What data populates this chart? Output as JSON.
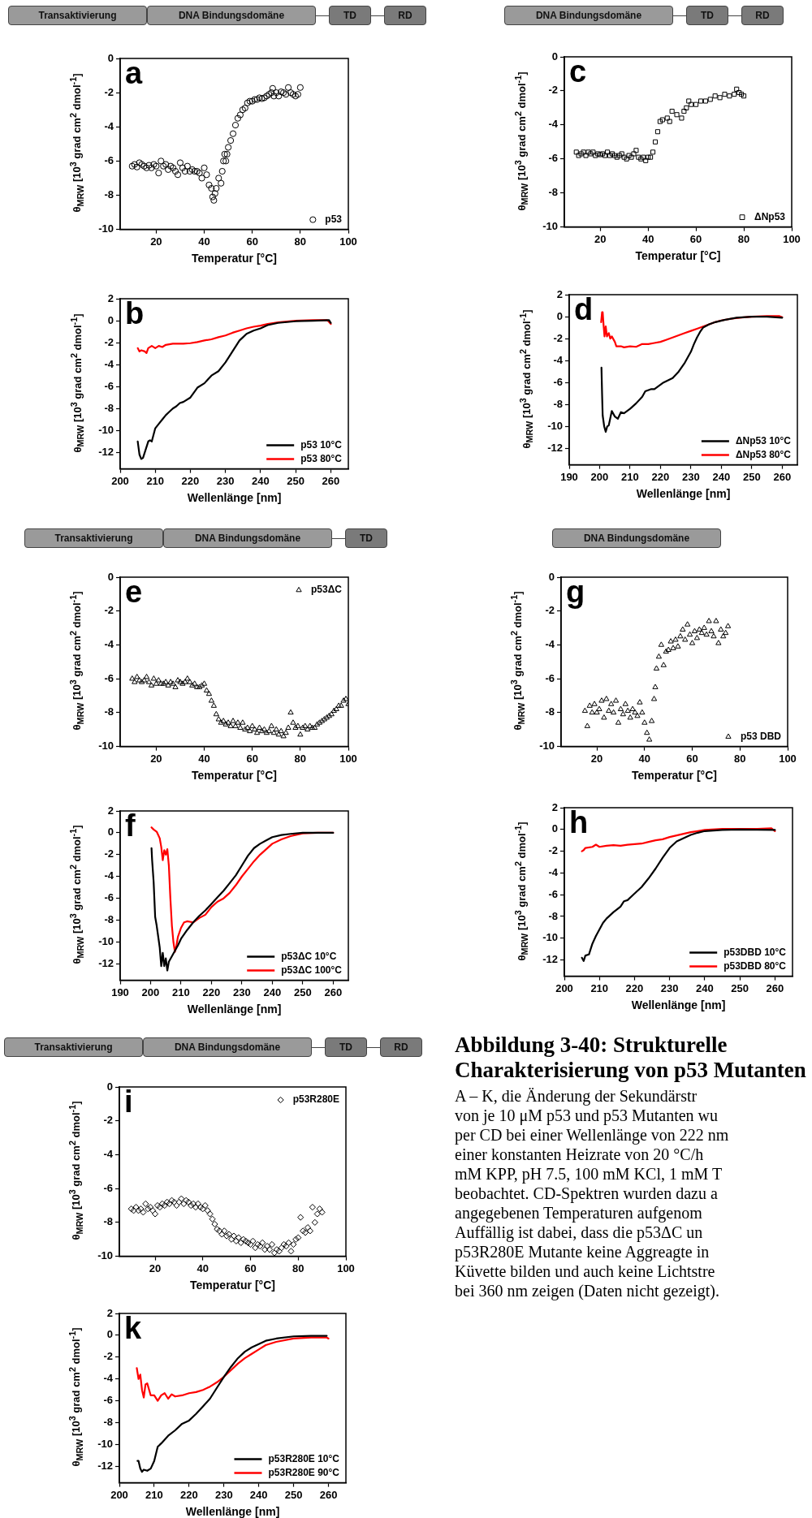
{
  "chart_data": [
    {
      "type": "scatter",
      "title": "a",
      "xlabel": "Temperatur [°C]",
      "ylabel": "θ$_{MRW}$ [10$^{3}$ grad cm$^{2}$ dmol$^{-1}$]",
      "annotations": [
        "Transaktivierung",
        "DNA Bindungsdomäne",
        "TD",
        "RD"
      ],
      "marker": "circle",
      "legend": "bottom right",
      "xlim": [
        5,
        100
      ],
      "xticks": [
        20,
        40,
        60,
        80,
        100
      ],
      "ylim": [
        -10,
        0
      ],
      "yticks": [
        0,
        -2,
        -4,
        -6,
        -8,
        -10
      ],
      "x": [
        10,
        11,
        12,
        13,
        14,
        15,
        16,
        17,
        18,
        19,
        20,
        21,
        22,
        23,
        24,
        25,
        26,
        27,
        28,
        29,
        30,
        31,
        32,
        33,
        34,
        35,
        36,
        37,
        38,
        39,
        40,
        41,
        42,
        43,
        43.5,
        44,
        44.5,
        45,
        46,
        47,
        47.5,
        48,
        48.5,
        49,
        49.5,
        50,
        51,
        52,
        53,
        54,
        55,
        56,
        57,
        58,
        59,
        60,
        61,
        62,
        63,
        64,
        65,
        66,
        67,
        68,
        68.5,
        69,
        70,
        71,
        72,
        73,
        74,
        75,
        76,
        77,
        78,
        79,
        80
      ],
      "series": [
        {
          "name": "p53",
          "color": "#000000",
          "values": [
            -6.3,
            -6.2,
            -6.35,
            -6.1,
            -6.2,
            -6.3,
            -6.4,
            -6.25,
            -6.4,
            -6.2,
            -6.3,
            -6.7,
            -6.0,
            -6.3,
            -6.2,
            -6.5,
            -6.3,
            -6.4,
            -6.6,
            -6.8,
            -6.1,
            -6.4,
            -6.6,
            -6.3,
            -6.6,
            -6.5,
            -6.6,
            -6.6,
            -6.7,
            -7.0,
            -6.4,
            -6.8,
            -7.4,
            -7.6,
            -8.1,
            -8.3,
            -7.9,
            -7.6,
            -7.0,
            -7.3,
            -6.6,
            -6.0,
            -5.6,
            -6.0,
            -5.6,
            -5.2,
            -4.8,
            -4.4,
            -3.9,
            -3.5,
            -3.3,
            -3.0,
            -2.9,
            -2.6,
            -2.5,
            -2.5,
            -2.4,
            -2.4,
            -2.3,
            -2.35,
            -2.3,
            -2.2,
            -2.1,
            -2.0,
            -1.75,
            -2.2,
            -2.0,
            -2.2,
            -1.95,
            -2.0,
            -2.1,
            -1.7,
            -2.0,
            -2.1,
            -2.2,
            -2.1,
            -1.7
          ]
        }
      ]
    },
    {
      "type": "line",
      "title": "b",
      "xlabel": "Wellenlänge [nm]",
      "ylabel": "θ$_{MRW}$ [10$^{3}$ grad cm$^{2}$ dmol$^{-1}$]",
      "legend": "bottom right",
      "xlim": [
        200,
        265
      ],
      "xticks": [
        200,
        210,
        220,
        230,
        240,
        250,
        260
      ],
      "ylim": [
        -13.5,
        2
      ],
      "yticks": [
        2,
        0,
        -2,
        -4,
        -6,
        -8,
        -10,
        -12
      ],
      "series": [
        {
          "name": "p53 10°C",
          "color": "#000000",
          "x": [
            205,
            205.5,
            206,
            206.5,
            207,
            208,
            208.5,
            209,
            210,
            211,
            212,
            213,
            214,
            215,
            216,
            217,
            218,
            220,
            222,
            224,
            226,
            228,
            230,
            232,
            234,
            235,
            236,
            238,
            240,
            242,
            245,
            250,
            255,
            259.5,
            260
          ],
          "values": [
            -11.0,
            -12.2,
            -12.6,
            -12.5,
            -12.0,
            -11.0,
            -10.9,
            -11.0,
            -9.8,
            -9.4,
            -9.0,
            -8.6,
            -8.3,
            -8.0,
            -7.8,
            -7.5,
            -7.4,
            -7.0,
            -6.1,
            -5.7,
            -5.0,
            -4.6,
            -3.8,
            -2.8,
            -1.8,
            -1.5,
            -1.2,
            -0.9,
            -0.7,
            -0.4,
            -0.2,
            -0.05,
            0,
            0.05,
            -0.2
          ]
        },
        {
          "name": "p53 80°C",
          "color": "#ff0000",
          "x": [
            205,
            205.5,
            206,
            207,
            207.5,
            208,
            209,
            210,
            211,
            212,
            213,
            215,
            218,
            220,
            222,
            224,
            226,
            228,
            230,
            232,
            234,
            236,
            238,
            240,
            242,
            245,
            250,
            255,
            259,
            260
          ],
          "values": [
            -2.5,
            -2.8,
            -2.7,
            -2.8,
            -2.95,
            -2.5,
            -2.3,
            -2.5,
            -2.3,
            -2.4,
            -2.2,
            -2.1,
            -2.1,
            -2.05,
            -1.95,
            -1.8,
            -1.7,
            -1.5,
            -1.35,
            -1.1,
            -0.9,
            -0.7,
            -0.55,
            -0.45,
            -0.3,
            -0.15,
            0,
            0.05,
            0.05,
            -0.3
          ]
        }
      ]
    },
    {
      "type": "scatter",
      "title": "c",
      "xlabel": "Temperatur [°C]",
      "ylabel": "θ$_{MRW}$ [10$^{3}$ grad cm$^{2}$ dmol$^{-1}$]",
      "annotations": [
        "DNA Bindungsdomäne",
        "TD",
        "RD"
      ],
      "marker": "square",
      "legend": "bottom right",
      "xlim": [
        5,
        100
      ],
      "xticks": [
        20,
        40,
        60,
        80,
        100
      ],
      "ylim": [
        -10,
        0
      ],
      "yticks": [
        0,
        -2,
        -4,
        -6,
        -8,
        -10
      ],
      "x": [
        10,
        11,
        12,
        13,
        14,
        15,
        16,
        17,
        18,
        19,
        20,
        21,
        22,
        23,
        24,
        25,
        26,
        27,
        28,
        29,
        30,
        31,
        32,
        33,
        34,
        35,
        36,
        37,
        38,
        39,
        40,
        41,
        42,
        43,
        44,
        45,
        46,
        48,
        49,
        50,
        52,
        54,
        55,
        56,
        57,
        58,
        60,
        62,
        64,
        66,
        68,
        70,
        72,
        74,
        76,
        77,
        78,
        79,
        80
      ],
      "series": [
        {
          "name": "ΔNp53",
          "color": "#000000",
          "values": [
            -5.6,
            -5.8,
            -5.7,
            -5.6,
            -5.8,
            -5.6,
            -5.7,
            -5.6,
            -5.8,
            -5.7,
            -5.75,
            -5.7,
            -5.8,
            -5.6,
            -5.8,
            -5.7,
            -5.8,
            -5.9,
            -5.8,
            -5.7,
            -5.9,
            -6.0,
            -5.8,
            -5.9,
            -5.7,
            -5.5,
            -5.9,
            -6.0,
            -5.9,
            -6.1,
            -5.9,
            -5.9,
            -5.6,
            -5.0,
            -4.4,
            -3.8,
            -3.7,
            -3.6,
            -3.8,
            -3.2,
            -3.4,
            -3.6,
            -3.2,
            -3.0,
            -2.6,
            -2.8,
            -2.8,
            -2.6,
            -2.6,
            -2.5,
            -2.3,
            -2.4,
            -2.2,
            -2.3,
            -2.2,
            -1.9,
            -2.1,
            -2.2,
            -2.3
          ]
        }
      ]
    },
    {
      "type": "line",
      "title": "d",
      "xlabel": "Wellenlänge [nm]",
      "ylabel": "θ$_{MRW}$ [10$^{3}$ grad cm$^{2}$ dmol$^{-1}$]",
      "legend": "bottom right",
      "xlim": [
        190,
        265
      ],
      "xticks": [
        190,
        200,
        210,
        220,
        230,
        240,
        250,
        260
      ],
      "ylim": [
        -13.5,
        2
      ],
      "yticks": [
        2,
        0,
        -2,
        -4,
        -6,
        -8,
        -10,
        -12
      ],
      "series": [
        {
          "name": "ΔNp53 10°C",
          "color": "#000000",
          "x": [
            200.6,
            200.8,
            201,
            201.5,
            202,
            202.5,
            203,
            204,
            205,
            206,
            207,
            208,
            210,
            212,
            214,
            215,
            217,
            218,
            221,
            224,
            226,
            228,
            230,
            231,
            232,
            233,
            234,
            236,
            238,
            241,
            245,
            250,
            255,
            260
          ],
          "values": [
            -4.65,
            -7.0,
            -9.0,
            -10.0,
            -10.5,
            -10.0,
            -9.9,
            -8.6,
            -9.1,
            -9.3,
            -8.7,
            -8.8,
            -8.4,
            -7.9,
            -7.3,
            -6.8,
            -6.6,
            -6.6,
            -6.0,
            -5.6,
            -5.0,
            -4.2,
            -3.2,
            -2.5,
            -1.9,
            -1.4,
            -1.0,
            -0.7,
            -0.5,
            -0.3,
            -0.1,
            0,
            0,
            -0.1
          ]
        },
        {
          "name": "ΔNp53 80°C",
          "color": "#ff0000",
          "x": [
            200.5,
            200.8,
            201,
            201.3,
            201.6,
            202,
            202.4,
            203,
            203.5,
            204,
            205,
            205.5,
            207,
            208,
            210,
            212,
            214,
            216,
            218,
            220,
            222,
            224,
            226,
            228,
            230,
            232,
            234,
            236,
            238,
            240,
            243,
            246,
            250,
            255,
            259,
            260
          ],
          "values": [
            -0.5,
            0.4,
            0.4,
            -0.8,
            -1.8,
            -0.9,
            -1.8,
            -1.5,
            -2.0,
            -1.8,
            -2.3,
            -2.7,
            -2.7,
            -2.8,
            -2.7,
            -2.75,
            -2.5,
            -2.5,
            -2.4,
            -2.3,
            -2.1,
            -1.9,
            -1.7,
            -1.5,
            -1.3,
            -1.1,
            -0.9,
            -0.7,
            -0.5,
            -0.35,
            -0.2,
            -0.1,
            0,
            0.05,
            0.05,
            -0.05
          ]
        }
      ]
    },
    {
      "type": "scatter",
      "title": "e",
      "xlabel": "Temperatur [°C]",
      "ylabel": "θ$_{MRW}$ [10$^{3}$ grad cm$^{2}$ dmol$^{-1}$]",
      "annotations": [
        "Transaktivierung",
        "DNA Bindungsdomäne",
        "TD"
      ],
      "marker": "triangle",
      "legend": "top right",
      "xlim": [
        5,
        100
      ],
      "xticks": [
        20,
        40,
        60,
        80,
        100
      ],
      "ylim": [
        -10,
        0
      ],
      "yticks": [
        0,
        -2,
        -4,
        -6,
        -8,
        -10
      ],
      "x": [
        10,
        11,
        12,
        13,
        14,
        15,
        16,
        17,
        18,
        19,
        20,
        21,
        22,
        23,
        24,
        25,
        26,
        27,
        28,
        29,
        30,
        31,
        32,
        33,
        34,
        35,
        36,
        37,
        38,
        39,
        40,
        41,
        42,
        43,
        44,
        45,
        46,
        47,
        48,
        49,
        50,
        51,
        52,
        53,
        54,
        55,
        56,
        57,
        58,
        59,
        60,
        61,
        62,
        63,
        64,
        65,
        66,
        67,
        68,
        69,
        70,
        71,
        72,
        73,
        74,
        75,
        76,
        77,
        78,
        79,
        80,
        81,
        82,
        83,
        84,
        85,
        86,
        87,
        88,
        89,
        90,
        91,
        92,
        93,
        94,
        95,
        96,
        97,
        98,
        99,
        100
      ],
      "series": [
        {
          "name": "p53ΔC",
          "color": "#000000",
          "values": [
            -6.0,
            -6.2,
            -5.9,
            -6.1,
            -6.2,
            -6.1,
            -5.9,
            -6.2,
            -6.4,
            -6.0,
            -6.3,
            -6.1,
            -6.3,
            -6.3,
            -6.2,
            -6.4,
            -6.2,
            -6.3,
            -6.5,
            -6.1,
            -6.2,
            -6.3,
            -6.2,
            -6.0,
            -6.2,
            -6.4,
            -6.3,
            -6.5,
            -6.5,
            -6.4,
            -6.3,
            -6.7,
            -6.9,
            -7.3,
            -7.6,
            -8.1,
            -8.4,
            -8.6,
            -8.5,
            -8.7,
            -8.6,
            -8.8,
            -8.5,
            -8.8,
            -8.6,
            -8.9,
            -8.6,
            -9.0,
            -8.9,
            -9.1,
            -8.8,
            -9.0,
            -9.2,
            -8.9,
            -9.1,
            -9.0,
            -9.2,
            -9.1,
            -8.8,
            -9.2,
            -9.0,
            -9.3,
            -9.1,
            -9.4,
            -9.2,
            -8.9,
            -8.0,
            -8.6,
            -8.9,
            -8.8,
            -9.3,
            -8.9,
            -8.8,
            -9.0,
            -8.8,
            -8.9,
            -8.9,
            -8.7,
            -8.6,
            -8.5,
            -8.4,
            -8.3,
            -8.2,
            -8.1,
            -7.9,
            -7.8,
            -7.6,
            -7.6,
            -7.3,
            -7.2,
            -7.5
          ]
        }
      ]
    },
    {
      "type": "line",
      "title": "f",
      "xlabel": "Wellenlänge [nm]",
      "ylabel": "θ$_{MRW}$ [10$^{3}$ grad cm$^{2}$ dmol$^{-1}$]",
      "legend": "bottom right",
      "xlim": [
        190,
        265
      ],
      "xticks": [
        190,
        200,
        210,
        220,
        230,
        240,
        250,
        260
      ],
      "ylim": [
        -13.5,
        2
      ],
      "yticks": [
        2,
        0,
        -2,
        -4,
        -6,
        -8,
        -10,
        -12
      ],
      "series": [
        {
          "name": "p53ΔC 10°C",
          "color": "#000000",
          "x": [
            200.3,
            200.5,
            201,
            201.5,
            202,
            202.5,
            203,
            203.5,
            204,
            204.5,
            205,
            205.5,
            206,
            207,
            208,
            209,
            210,
            212,
            214,
            216,
            218,
            220,
            222,
            224,
            226,
            228,
            230,
            232,
            234,
            236,
            238,
            240,
            243,
            246,
            250,
            260
          ],
          "values": [
            -1.4,
            -2.5,
            -4.5,
            -7.7,
            -8.5,
            -9.5,
            -10.5,
            -12.2,
            -11.0,
            -12.2,
            -11.5,
            -12.6,
            -11.8,
            -11.3,
            -10.8,
            -10.3,
            -9.7,
            -8.9,
            -8.2,
            -7.6,
            -7.1,
            -6.5,
            -5.9,
            -5.3,
            -4.6,
            -3.9,
            -3.0,
            -2.1,
            -1.4,
            -1.0,
            -0.7,
            -0.4,
            -0.2,
            -0.1,
            0,
            0
          ]
        },
        {
          "name": "p53ΔC 100°C",
          "color": "#ff0000",
          "x": [
            200.3,
            201,
            202,
            203,
            203.5,
            204,
            204.5,
            205,
            205.5,
            206,
            206.5,
            207,
            207.5,
            208,
            208.5,
            209,
            210,
            211,
            212,
            214,
            216,
            218,
            220,
            222,
            224,
            226,
            228,
            230,
            232,
            234,
            236,
            238,
            240,
            243,
            246,
            250,
            255,
            260
          ],
          "values": [
            0.5,
            0.3,
            0.1,
            -0.5,
            -1.3,
            -2.5,
            -1.6,
            -2.0,
            -1.5,
            -3.0,
            -6.0,
            -8.5,
            -10.0,
            -10.9,
            -10.3,
            -9.5,
            -8.7,
            -8.2,
            -8.1,
            -8.2,
            -7.8,
            -7.5,
            -6.8,
            -6.3,
            -6.0,
            -5.5,
            -4.8,
            -4.0,
            -3.3,
            -2.6,
            -2.0,
            -1.5,
            -1.0,
            -0.6,
            -0.3,
            -0.05,
            0,
            0
          ]
        }
      ]
    },
    {
      "type": "scatter",
      "title": "g",
      "xlabel": "Temperatur [°C]",
      "ylabel": "θ$_{MRW}$ [10$^{3}$ grad cm$^{2}$ dmol$^{-1}$]",
      "annotations": [
        "DNA Bindungsdomäne"
      ],
      "marker": "triangle",
      "legend": "bottom right",
      "xlim": [
        5,
        100
      ],
      "xticks": [
        20,
        40,
        60,
        80,
        100
      ],
      "ylim": [
        -10,
        0
      ],
      "yticks": [
        0,
        -2,
        -4,
        -6,
        -8,
        -10
      ],
      "x": [
        15,
        16,
        17,
        18,
        19,
        20,
        21,
        22,
        23,
        24,
        25,
        26,
        27,
        28,
        29,
        30,
        31,
        32,
        33,
        34,
        35,
        36,
        37,
        38,
        39,
        40,
        41,
        42,
        43,
        44,
        44.5,
        45,
        46,
        47,
        48,
        49,
        50,
        51,
        52,
        53,
        54,
        55,
        56,
        57,
        58,
        59,
        60,
        61,
        62,
        63,
        64,
        65,
        66,
        67,
        68,
        69,
        70,
        71,
        72,
        73,
        74,
        75
      ],
      "series": [
        {
          "name": "p53 DBD",
          "color": "#000000",
          "values": [
            -7.9,
            -8.8,
            -7.6,
            -8.0,
            -7.5,
            -8.0,
            -7.8,
            -7.3,
            -8.3,
            -7.2,
            -7.9,
            -7.5,
            -8.0,
            -7.3,
            -8.6,
            -7.8,
            -8.1,
            -7.5,
            -7.9,
            -8.3,
            -7.8,
            -8.0,
            -8.2,
            -7.4,
            -8.0,
            -8.6,
            -9.2,
            -9.6,
            -8.5,
            -7.2,
            -6.5,
            -5.4,
            -4.7,
            -4.0,
            -5.2,
            -4.4,
            -4.3,
            -3.8,
            -4.2,
            -3.7,
            -4.1,
            -3.5,
            -3.1,
            -3.7,
            -2.8,
            -3.4,
            -3.9,
            -3.2,
            -3.6,
            -3.1,
            -3.3,
            -3.0,
            -3.4,
            -2.6,
            -3.2,
            -3.5,
            -2.6,
            -3.9,
            -3.1,
            -3.5,
            -3.3,
            -2.9
          ]
        }
      ]
    },
    {
      "type": "line",
      "title": "h",
      "xlabel": "Wellenlänge [nm]",
      "ylabel": "θ$_{MRW}$ [10$^{3}$ grad cm$^{2}$ dmol$^{-1}$]",
      "legend": "bottom right",
      "xlim": [
        200,
        265
      ],
      "xticks": [
        200,
        210,
        220,
        230,
        240,
        250,
        260
      ],
      "ylim": [
        -13.5,
        2
      ],
      "yticks": [
        2,
        0,
        -2,
        -4,
        -6,
        -8,
        -10,
        -12
      ],
      "series": [
        {
          "name": "p53DBD 10°C",
          "color": "#000000",
          "x": [
            205,
            205.5,
            206,
            207,
            208,
            209,
            210,
            211,
            212,
            214,
            216,
            217,
            218,
            220,
            222,
            224,
            226,
            228,
            230,
            232,
            234,
            236,
            238,
            240,
            245,
            250,
            260
          ],
          "values": [
            -11.8,
            -12.1,
            -11.6,
            -11.5,
            -10.5,
            -9.8,
            -9.2,
            -8.6,
            -8.2,
            -7.6,
            -7.1,
            -6.6,
            -6.5,
            -5.9,
            -5.3,
            -4.5,
            -3.6,
            -2.6,
            -1.7,
            -1.1,
            -0.8,
            -0.5,
            -0.3,
            -0.15,
            -0.05,
            0,
            -0.05
          ]
        },
        {
          "name": "p53DBD 80°C",
          "color": "#ff0000",
          "x": [
            205,
            205.5,
            206,
            208,
            209,
            210,
            212,
            214,
            216,
            218,
            220,
            222,
            224,
            226,
            228,
            230,
            232,
            234,
            236,
            238,
            240,
            245,
            250,
            255,
            259,
            260
          ],
          "values": [
            -2.0,
            -1.9,
            -1.7,
            -1.6,
            -1.4,
            -1.6,
            -1.5,
            -1.45,
            -1.5,
            -1.4,
            -1.35,
            -1.3,
            -1.15,
            -1.0,
            -0.9,
            -0.7,
            -0.55,
            -0.4,
            -0.25,
            -0.15,
            -0.05,
            0.05,
            0.05,
            0.05,
            0.1,
            -0.15
          ]
        }
      ]
    },
    {
      "type": "scatter",
      "title": "i",
      "xlabel": "Temperatur [°C]",
      "ylabel": "θ$_{MRW}$ [10$^{3}$ grad cm$^{2}$ dmol$^{-1}$]",
      "annotations": [
        "Transaktivierung",
        "DNA Bindungsdomäne",
        "TD",
        "RD"
      ],
      "marker": "diamond",
      "legend": "top right",
      "xlim": [
        5,
        100
      ],
      "xticks": [
        20,
        40,
        60,
        80,
        100
      ],
      "ylim": [
        -10,
        0
      ],
      "yticks": [
        0,
        -2,
        -4,
        -6,
        -8,
        -10
      ],
      "x": [
        10,
        11,
        12,
        13,
        14,
        15,
        16,
        17,
        18,
        19,
        20,
        21,
        22,
        23,
        24,
        25,
        26,
        27,
        28,
        29,
        30,
        31,
        32,
        33,
        34,
        35,
        36,
        37,
        38,
        39,
        40,
        41,
        42,
        43,
        44,
        45,
        46,
        47,
        48,
        49,
        50,
        51,
        52,
        53,
        54,
        55,
        56,
        57,
        58,
        59,
        60,
        61,
        62,
        63,
        64,
        65,
        66,
        67,
        68,
        69,
        70,
        71,
        72,
        73,
        74,
        75,
        76,
        77,
        78,
        79,
        80,
        81,
        82,
        83,
        84,
        85,
        86,
        87,
        88,
        89,
        90
      ],
      "series": [
        {
          "name": "p53R280E",
          "color": "#000000",
          "values": [
            -7.2,
            -7.3,
            -7.1,
            -7.3,
            -7.2,
            -7.4,
            -6.9,
            -7.2,
            -7.1,
            -7.3,
            -7.5,
            -7.0,
            -7.1,
            -6.9,
            -7.0,
            -6.8,
            -6.9,
            -6.7,
            -6.8,
            -7.0,
            -6.8,
            -6.6,
            -6.9,
            -6.7,
            -6.8,
            -7.0,
            -6.9,
            -7.1,
            -6.9,
            -7.1,
            -7.2,
            -7.0,
            -7.3,
            -7.5,
            -7.8,
            -8.1,
            -8.4,
            -8.5,
            -8.7,
            -8.5,
            -8.8,
            -8.7,
            -9.0,
            -8.8,
            -9.1,
            -8.9,
            -9.2,
            -9.0,
            -9.1,
            -9.2,
            -9.3,
            -9.1,
            -9.5,
            -9.3,
            -9.4,
            -9.2,
            -9.6,
            -9.4,
            -9.6,
            -9.3,
            -9.8,
            -9.6,
            -9.7,
            -9.5,
            -9.3,
            -9.4,
            -9.2,
            -9.7,
            -9.3,
            -9.0,
            -8.9,
            -7.7,
            -8.5,
            -8.6,
            -8.3,
            -8.5,
            -7.1,
            -8.0,
            -7.5,
            -7.2,
            -7.4
          ]
        }
      ]
    },
    {
      "type": "line",
      "title": "k",
      "xlabel": "Wellenlänge [nm]",
      "ylabel": "θ$_{MRW}$ [10$^{3}$ grad cm$^{2}$ dmol$^{-1}$]",
      "legend": "bottom right",
      "xlim": [
        200,
        265
      ],
      "xticks": [
        200,
        210,
        220,
        230,
        240,
        250,
        260
      ],
      "ylim": [
        -13.5,
        2
      ],
      "yticks": [
        2,
        0,
        -2,
        -4,
        -6,
        -8,
        -10,
        -12
      ],
      "series": [
        {
          "name": "p53R280E 10°C",
          "color": "#000000",
          "x": [
            205.2,
            205.5,
            206,
            206.5,
            207,
            208,
            209,
            210,
            211,
            212,
            214,
            216,
            218,
            220,
            222,
            224,
            226,
            228,
            230,
            232,
            234,
            236,
            238,
            240,
            242,
            245,
            250,
            255,
            259.5
          ],
          "values": [
            -11.5,
            -11.5,
            -12.2,
            -12.5,
            -12.3,
            -12.4,
            -12.2,
            -11.5,
            -10.2,
            -9.9,
            -9.2,
            -8.7,
            -8.1,
            -7.8,
            -7.2,
            -6.5,
            -5.8,
            -4.8,
            -3.8,
            -2.9,
            -2.1,
            -1.5,
            -1.1,
            -0.8,
            -0.5,
            -0.3,
            -0.1,
            -0.05,
            -0.05
          ]
        },
        {
          "name": "p53R280E 90°C",
          "color": "#ff0000",
          "x": [
            205,
            205.5,
            206,
            206.5,
            207,
            207.5,
            208,
            209,
            210,
            211,
            212,
            213,
            214,
            215,
            216,
            218,
            220,
            222,
            224,
            226,
            228,
            230,
            232,
            234,
            236,
            238,
            240,
            242,
            245,
            250,
            255,
            259.5,
            260
          ],
          "values": [
            -3.0,
            -4.0,
            -3.6,
            -5.0,
            -5.7,
            -4.5,
            -4.4,
            -5.5,
            -5.5,
            -6.0,
            -5.5,
            -5.3,
            -5.8,
            -5.4,
            -5.6,
            -5.5,
            -5.3,
            -5.2,
            -5.0,
            -4.7,
            -4.3,
            -3.8,
            -3.2,
            -2.6,
            -2.1,
            -1.7,
            -1.3,
            -0.9,
            -0.6,
            -0.3,
            -0.2,
            -0.2,
            -0.3
          ]
        }
      ]
    },
    {
      "type": "other",
      "title": "Abbildung 3-40: Strukturelle Charakterisierung von p53 Mutanten",
      "annotations": [
        "A – K, die Änderung der Sekundärstr",
        "von je 10 μM p53 und p53 Mutanten wu",
        "per CD bei einer Wellenlänge von 222 nm",
        "einer konstanten Heizrate von 20 °C/h",
        "mM KPP, pH 7.5, 100 mM KCl, 1 mM T",
        "beobachtet. CD-Spektren wurden dazu a",
        "angegebenen Temperaturen aufgenom",
        "Auffällig ist dabei, dass die p53ΔC un",
        "p53R280E Mutante keine Aggreagte in",
        "Küvette bilden und auch keine Lichtstre",
        "bei 360 nm zeigen (Daten nicht gezeigt)."
      ]
    }
  ]
}
